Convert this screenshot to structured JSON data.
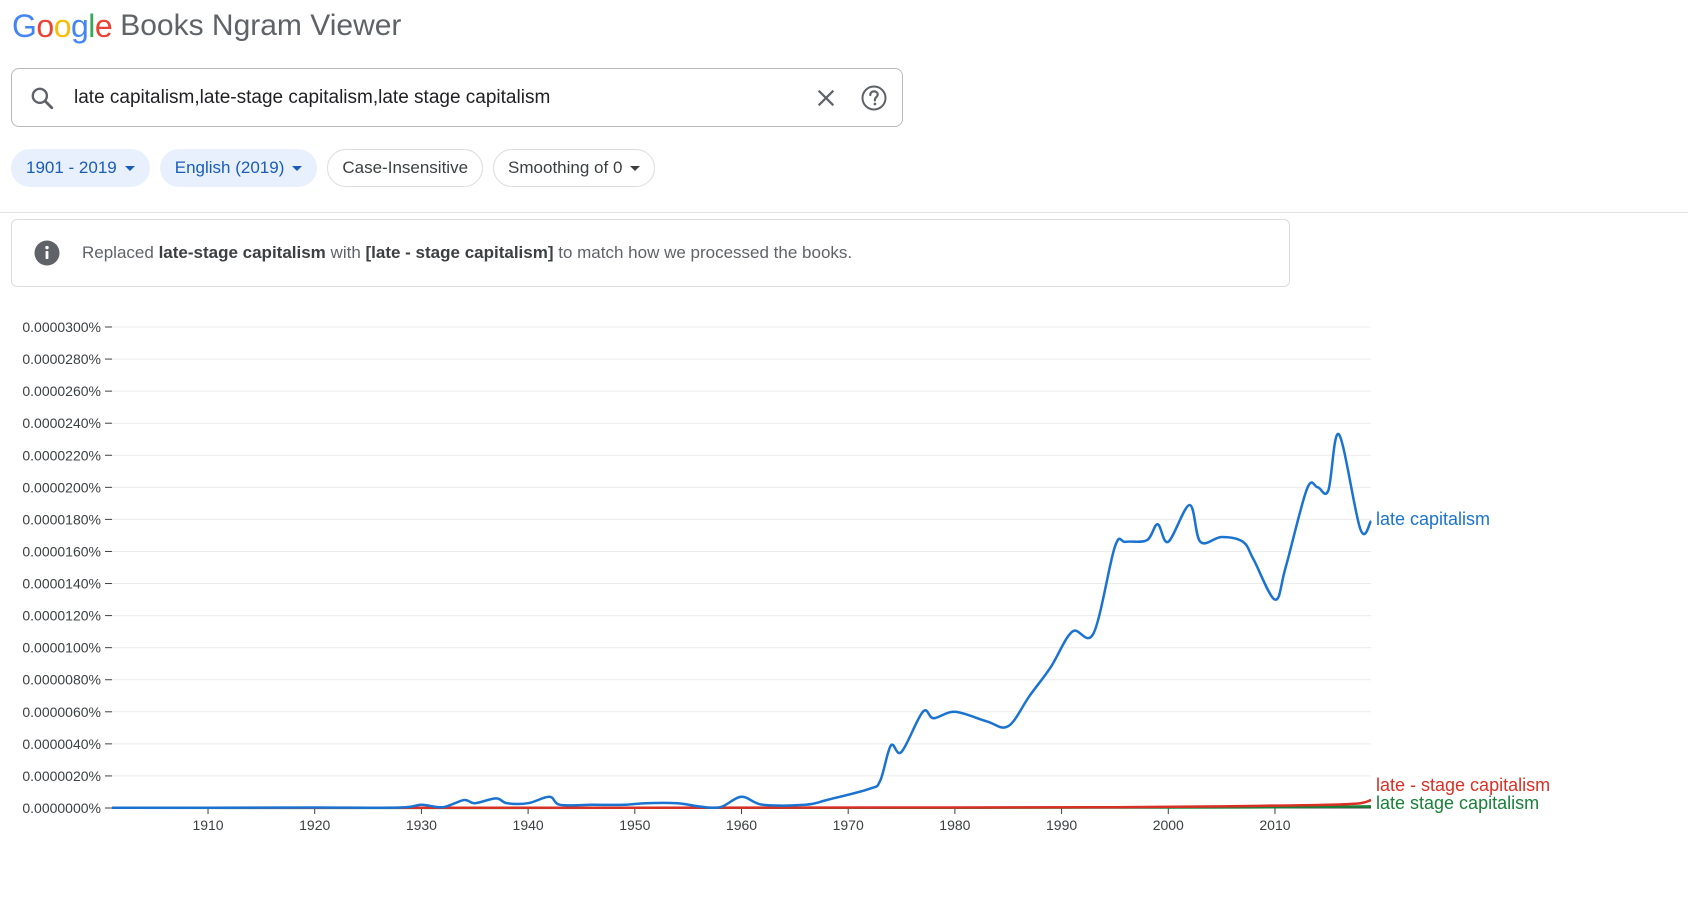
{
  "header": {
    "logo_text": "Google",
    "logo_colors": [
      "#4285F4",
      "#EA4335",
      "#FBBC05",
      "#4285F4",
      "#34A853",
      "#EA4335"
    ],
    "title": "Books Ngram Viewer"
  },
  "search": {
    "value": "late capitalism,late-stage capitalism,late stage capitalism",
    "icon": "search-icon",
    "clear_icon": "close-icon",
    "help_icon": "help-icon"
  },
  "chips": {
    "years": "1901 - 2019",
    "corpus": "English (2019)",
    "case": "Case-Insensitive",
    "smoothing": "Smoothing of 0"
  },
  "notice": {
    "icon": "info-icon",
    "prefix": "Replaced ",
    "original": "late-stage capitalism",
    "middle": " with ",
    "replacement": "[late - stage capitalism]",
    "suffix": " to match how we processed the books."
  },
  "chart_data": {
    "type": "line",
    "title": "",
    "xlabel": "",
    "ylabel": "",
    "xlim": [
      1901,
      2019
    ],
    "ylim": [
      0,
      3e-05
    ],
    "x_ticks": [
      1910,
      1920,
      1930,
      1940,
      1950,
      1960,
      1970,
      1980,
      1990,
      2000,
      2010
    ],
    "y_tick_labels": [
      "0.0000300%",
      "0.0000280%",
      "0.0000260%",
      "0.0000240%",
      "0.0000220%",
      "0.0000200%",
      "0.0000180%",
      "0.0000160%",
      "0.0000140%",
      "0.0000120%",
      "0.0000100%",
      "0.0000080%",
      "0.0000060%",
      "0.0000040%",
      "0.0000020%",
      "0.0000000%"
    ],
    "grid": true,
    "legend": "labels at line ends (right)",
    "series": [
      {
        "name": "late capitalism",
        "color": "#1a73d0",
        "points": [
          [
            1901,
            2e-08
          ],
          [
            1910,
            2e-08
          ],
          [
            1920,
            3e-08
          ],
          [
            1928,
            3e-08
          ],
          [
            1930,
            2e-07
          ],
          [
            1932,
            5e-08
          ],
          [
            1934,
            5e-07
          ],
          [
            1935,
            3e-07
          ],
          [
            1937,
            6e-07
          ],
          [
            1938,
            3e-07
          ],
          [
            1940,
            3e-07
          ],
          [
            1942,
            7e-07
          ],
          [
            1943,
            2e-07
          ],
          [
            1946,
            2e-07
          ],
          [
            1949,
            2e-07
          ],
          [
            1951,
            3e-07
          ],
          [
            1954,
            3e-07
          ],
          [
            1956,
            1e-07
          ],
          [
            1958,
            5e-08
          ],
          [
            1960,
            7e-07
          ],
          [
            1962,
            2e-07
          ],
          [
            1966,
            2e-07
          ],
          [
            1968,
            5e-07
          ],
          [
            1972,
            1.2e-06
          ],
          [
            1973,
            1.7e-06
          ],
          [
            1974,
            3.9e-06
          ],
          [
            1975,
            3.5e-06
          ],
          [
            1977,
            6e-06
          ],
          [
            1978,
            5.6e-06
          ],
          [
            1980,
            6e-06
          ],
          [
            1983,
            5.4e-06
          ],
          [
            1985,
            5.1e-06
          ],
          [
            1987,
            7e-06
          ],
          [
            1989,
            8.8e-06
          ],
          [
            1991,
            1.1e-05
          ],
          [
            1993,
            1.09e-05
          ],
          [
            1995,
            1.63e-05
          ],
          [
            1996,
            1.66e-05
          ],
          [
            1998,
            1.67e-05
          ],
          [
            1999,
            1.77e-05
          ],
          [
            2000,
            1.66e-05
          ],
          [
            2002,
            1.89e-05
          ],
          [
            2003,
            1.66e-05
          ],
          [
            2005,
            1.69e-05
          ],
          [
            2007,
            1.66e-05
          ],
          [
            2008,
            1.55e-05
          ],
          [
            2010,
            1.3e-05
          ],
          [
            2011,
            1.5e-05
          ],
          [
            2013,
            1.99e-05
          ],
          [
            2014,
            2e-05
          ],
          [
            2015,
            1.98e-05
          ],
          [
            2016,
            2.33e-05
          ],
          [
            2018,
            1.74e-05
          ],
          [
            2019,
            1.79e-05
          ]
        ]
      },
      {
        "name": "late - stage capitalism",
        "color": "#d93025",
        "points": [
          [
            1901,
            2e-08
          ],
          [
            1950,
            2e-08
          ],
          [
            1980,
            3e-08
          ],
          [
            1995,
            5e-08
          ],
          [
            2005,
            1e-07
          ],
          [
            2010,
            1.5e-07
          ],
          [
            2015,
            2e-07
          ],
          [
            2018,
            3e-07
          ],
          [
            2019,
            5e-07
          ]
        ]
      },
      {
        "name": "late stage capitalism",
        "color": "#188038",
        "points": [
          [
            1901,
            1e-08
          ],
          [
            1950,
            1e-08
          ],
          [
            1980,
            2e-08
          ],
          [
            2000,
            3e-08
          ],
          [
            2010,
            5e-08
          ],
          [
            2019,
            1e-07
          ]
        ]
      }
    ]
  }
}
